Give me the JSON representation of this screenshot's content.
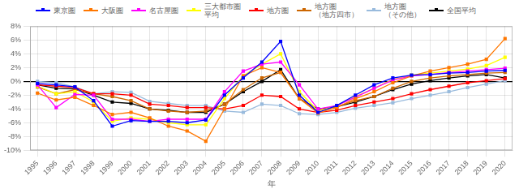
{
  "chart_data": {
    "type": "line",
    "x_label": "年",
    "x": [
      1995,
      1996,
      1997,
      1998,
      1999,
      2000,
      2001,
      2002,
      2003,
      2004,
      2005,
      2006,
      2007,
      2008,
      2009,
      2010,
      2011,
      2012,
      2013,
      2014,
      2015,
      2016,
      2017,
      2018,
      2019,
      2020
    ],
    "series": [
      {
        "name": "東京圏",
        "color": "#0000FF",
        "values": [
          -0.3,
          -0.5,
          -0.8,
          -2.8,
          -6.5,
          -5.7,
          -5.8,
          -5.8,
          -6.0,
          -5.6,
          -2.0,
          0.5,
          2.8,
          5.8,
          -2.0,
          -4.5,
          -3.5,
          -2.0,
          -0.5,
          0.5,
          0.9,
          1.0,
          1.2,
          1.3,
          1.5,
          1.6
        ]
      },
      {
        "name": "大阪圏",
        "color": "#FF7700",
        "values": [
          -1.7,
          -2.7,
          -2.3,
          -3.5,
          -4.8,
          -4.5,
          -5.3,
          -6.5,
          -7.2,
          -8.7,
          -4.0,
          0.8,
          2.0,
          1.3,
          -2.5,
          -4.6,
          -3.8,
          -2.5,
          -1.5,
          -0.2,
          0.8,
          1.5,
          2.0,
          2.5,
          3.2,
          6.2
        ]
      },
      {
        "name": "名古屋圏",
        "color": "#FF00FF",
        "values": [
          -0.5,
          -3.8,
          -1.9,
          -2.0,
          -5.5,
          -5.5,
          -5.8,
          -5.5,
          -5.5,
          -5.5,
          -1.5,
          1.5,
          2.5,
          2.8,
          -0.5,
          -4.0,
          -3.5,
          -2.3,
          -1.0,
          0.2,
          0.8,
          1.0,
          1.3,
          1.5,
          1.7,
          1.9
        ]
      },
      {
        "name": "三大都市圏\n平均",
        "color": "#FFFF00",
        "values": [
          -0.7,
          -1.8,
          -1.5,
          -3.0,
          -5.8,
          -5.3,
          -5.5,
          -6.0,
          -6.3,
          -6.3,
          -2.5,
          0.8,
          2.5,
          4.0,
          -1.5,
          -4.3,
          -3.5,
          -2.2,
          -1.0,
          0.3,
          0.9,
          1.2,
          1.5,
          1.8,
          2.3,
          3.5
        ]
      },
      {
        "name": "地方圏",
        "color": "#FF0000",
        "values": [
          -0.5,
          -0.7,
          -0.9,
          -1.8,
          -1.8,
          -2.0,
          -3.3,
          -3.5,
          -3.8,
          -3.8,
          -4.0,
          -3.5,
          -2.0,
          -2.2,
          -4.0,
          -4.5,
          -4.2,
          -3.5,
          -3.0,
          -2.5,
          -1.8,
          -1.2,
          -0.7,
          -0.2,
          0.1,
          0.4
        ]
      },
      {
        "name": "地方圏\n（地方四市）",
        "color": "#CC6600",
        "values": [
          -0.8,
          -1.8,
          -1.2,
          -1.8,
          -2.2,
          -2.8,
          -4.0,
          -4.3,
          -4.5,
          -4.3,
          -3.3,
          -1.2,
          0.5,
          1.3,
          -2.5,
          -4.2,
          -3.7,
          -2.8,
          -2.2,
          -1.0,
          0.0,
          0.5,
          0.8,
          1.0,
          1.2,
          1.3
        ]
      },
      {
        "name": "地方圏\n（その他）",
        "color": "#99BBDD",
        "values": [
          0.0,
          -0.2,
          -0.8,
          -1.8,
          -1.5,
          -1.6,
          -2.9,
          -3.2,
          -3.5,
          -3.5,
          -4.3,
          -4.5,
          -3.3,
          -3.5,
          -4.7,
          -4.8,
          -4.5,
          -3.9,
          -3.5,
          -3.1,
          -2.5,
          -2.0,
          -1.5,
          -0.9,
          -0.4,
          0.1
        ]
      },
      {
        "name": "全国平均",
        "color": "#000000",
        "values": [
          -0.5,
          -1.0,
          -1.1,
          -2.0,
          -3.0,
          -3.2,
          -4.0,
          -4.2,
          -4.5,
          -4.5,
          -3.3,
          -1.5,
          0.0,
          1.7,
          -2.5,
          -4.0,
          -3.7,
          -3.0,
          -2.2,
          -1.2,
          -0.4,
          0.1,
          0.5,
          0.8,
          1.0,
          0.5
        ]
      }
    ],
    "xlim": [
      1994.6,
      2020.4
    ],
    "xticks": [
      1995,
      1996,
      1997,
      1998,
      1999,
      2000,
      2001,
      2002,
      2003,
      2004,
      2005,
      2006,
      2007,
      2008,
      2009,
      2010,
      2011,
      2012,
      2013,
      2014,
      2015,
      2016,
      2017,
      2018,
      2019,
      2020
    ],
    "ylim": [
      -10,
      8
    ],
    "yticks": [
      {
        "value": -10,
        "label": "-10%"
      },
      {
        "value": -8,
        "label": "-8%"
      },
      {
        "value": -6,
        "label": "-6%"
      },
      {
        "value": -4,
        "label": "-4%"
      },
      {
        "value": -2,
        "label": "-2%"
      },
      {
        "value": 0,
        "label": "0%"
      },
      {
        "value": 2,
        "label": "2%"
      },
      {
        "value": 4,
        "label": "4%"
      },
      {
        "value": 6,
        "label": "6%"
      },
      {
        "value": 8,
        "label": "8%"
      }
    ],
    "grid": true,
    "legend": "top",
    "marker": "square",
    "line_style": "solid"
  }
}
